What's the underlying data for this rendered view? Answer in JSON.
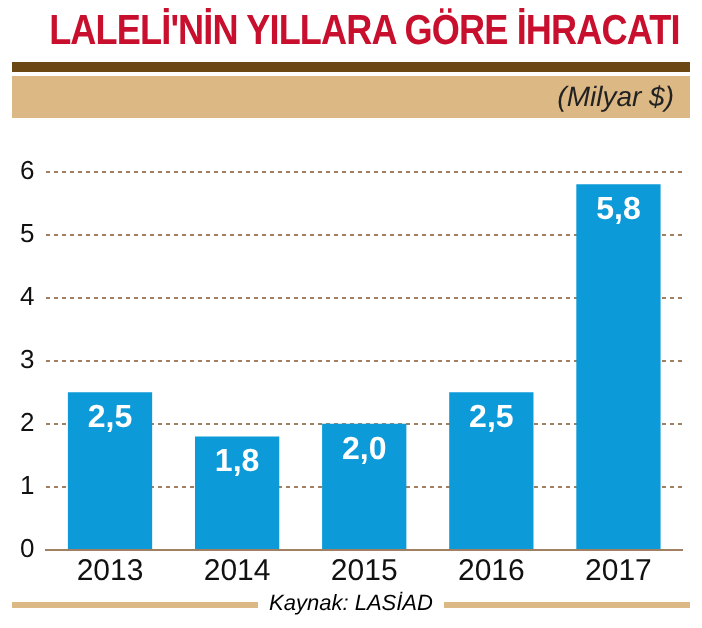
{
  "chart_data": {
    "type": "bar",
    "title": "LALELİ'NİN YILLARA GÖRE İHRACATI",
    "ylabel": "(Milyar $)",
    "categories": [
      "2013",
      "2014",
      "2015",
      "2016",
      "2017"
    ],
    "values": [
      2.5,
      1.8,
      2.0,
      2.5,
      5.8
    ],
    "value_labels": [
      "2,5",
      "1,8",
      "2,0",
      "2,5",
      "5,8"
    ],
    "color": "#0d9ad8",
    "ylim": [
      0,
      6
    ],
    "yticks": [
      0,
      1,
      2,
      3,
      4,
      5,
      6
    ],
    "grid": "y",
    "annotations": [
      "Kaynak: LASİAD"
    ]
  }
}
